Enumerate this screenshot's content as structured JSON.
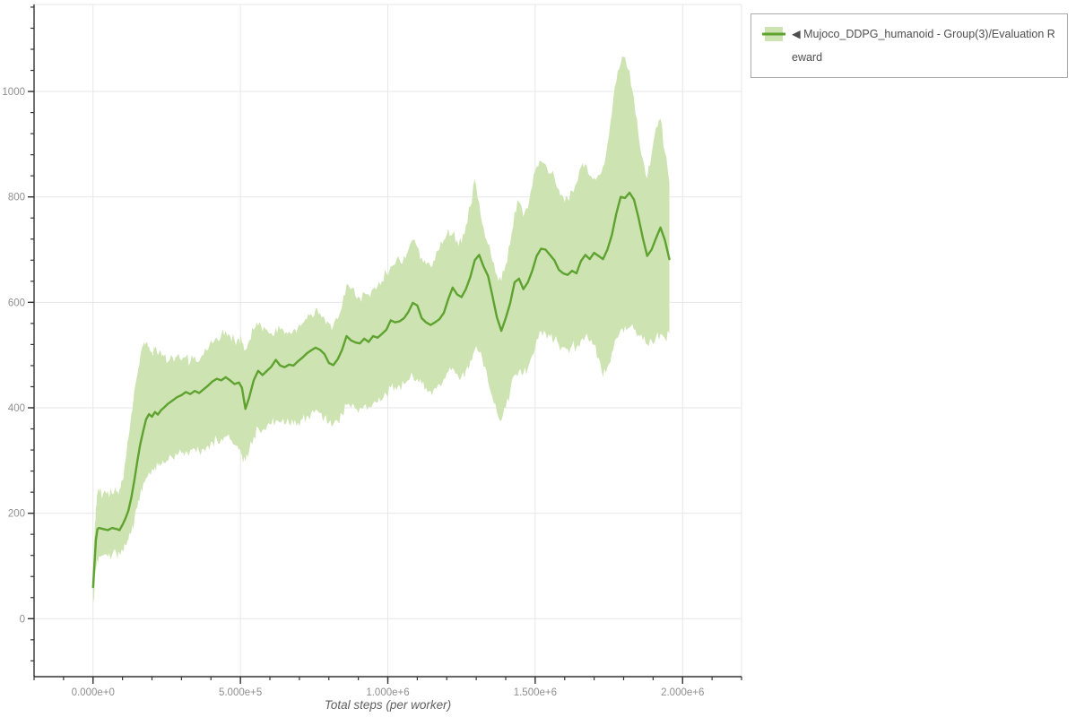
{
  "legend": {
    "arrow": "◀",
    "series_label": "Mujoco_DDPG_humanoid - Group(3)/Evaluation Reward"
  },
  "colors": {
    "line": "#5ea22f",
    "band": "#cde3b1",
    "grid": "#e7e7e7",
    "axis": "#333333",
    "tick_label": "#8f8f8f",
    "axis_title": "#5f5f5f",
    "legend_border": "#ababab",
    "legend_text": "#4d4d4d"
  },
  "chart_data": {
    "type": "line",
    "title": "",
    "xlabel": "Total steps (per worker)",
    "ylabel": "",
    "grid": true,
    "legend_position": "top-right-outside",
    "xlim": [
      -200000,
      2200000
    ],
    "ylim": [
      -110,
      1165
    ],
    "x_minor_step": 100000,
    "y_minor_step": 40,
    "xticks": [
      {
        "value": 0,
        "label": "0.000e+0"
      },
      {
        "value": 500000,
        "label": "5.000e+5"
      },
      {
        "value": 1000000,
        "label": "1.000e+6"
      },
      {
        "value": 1500000,
        "label": "1.500e+6"
      },
      {
        "value": 2000000,
        "label": "2.000e+6"
      }
    ],
    "yticks": [
      {
        "value": 0,
        "label": "0"
      },
      {
        "value": 200,
        "label": "200"
      },
      {
        "value": 400,
        "label": "400"
      },
      {
        "value": 600,
        "label": "600"
      },
      {
        "value": 800,
        "label": "800"
      },
      {
        "value": 1000,
        "label": "1000"
      }
    ],
    "series": [
      {
        "name": "Mujoco_DDPG_humanoid - Group(3)/Evaluation Reward",
        "points_format": [
          "steps",
          "mean",
          "band_lower",
          "band_upper"
        ],
        "points": [
          [
            0,
            60,
            35,
            95
          ],
          [
            5000,
            105,
            55,
            160
          ],
          [
            10000,
            150,
            95,
            215
          ],
          [
            15000,
            170,
            112,
            235
          ],
          [
            20000,
            172,
            118,
            240
          ],
          [
            35000,
            170,
            120,
            238
          ],
          [
            50000,
            168,
            118,
            242
          ],
          [
            65000,
            172,
            121,
            236
          ],
          [
            80000,
            170,
            122,
            240
          ],
          [
            90000,
            168,
            124,
            245
          ],
          [
            100000,
            178,
            130,
            262
          ],
          [
            110000,
            190,
            140,
            300
          ],
          [
            120000,
            205,
            150,
            342
          ],
          [
            130000,
            230,
            165,
            388
          ],
          [
            140000,
            262,
            186,
            432
          ],
          [
            150000,
            298,
            210,
            462
          ],
          [
            160000,
            330,
            235,
            495
          ],
          [
            170000,
            355,
            255,
            518
          ],
          [
            180000,
            378,
            268,
            523
          ],
          [
            190000,
            388,
            278,
            515
          ],
          [
            200000,
            383,
            284,
            506
          ],
          [
            210000,
            392,
            288,
            512
          ],
          [
            220000,
            387,
            290,
            500
          ],
          [
            230000,
            395,
            292,
            506
          ],
          [
            240000,
            400,
            296,
            498
          ],
          [
            255000,
            408,
            300,
            488
          ],
          [
            270000,
            414,
            305,
            496
          ],
          [
            285000,
            420,
            310,
            498
          ],
          [
            300000,
            424,
            314,
            490
          ],
          [
            315000,
            430,
            318,
            496
          ],
          [
            330000,
            426,
            320,
            486
          ],
          [
            345000,
            432,
            322,
            498
          ],
          [
            360000,
            428,
            318,
            488
          ],
          [
            375000,
            435,
            322,
            500
          ],
          [
            390000,
            442,
            328,
            510
          ],
          [
            405000,
            450,
            335,
            522
          ],
          [
            420000,
            455,
            340,
            532
          ],
          [
            435000,
            452,
            342,
            538
          ],
          [
            450000,
            458,
            345,
            546
          ],
          [
            465000,
            452,
            340,
            536
          ],
          [
            480000,
            445,
            330,
            528
          ],
          [
            495000,
            448,
            320,
            532
          ],
          [
            505000,
            438,
            310,
            524
          ],
          [
            517000,
            398,
            298,
            510
          ],
          [
            530000,
            420,
            320,
            528
          ],
          [
            545000,
            452,
            345,
            548
          ],
          [
            560000,
            470,
            362,
            556
          ],
          [
            575000,
            462,
            358,
            545
          ],
          [
            590000,
            470,
            365,
            548
          ],
          [
            605000,
            478,
            368,
            542
          ],
          [
            620000,
            491,
            375,
            552
          ],
          [
            635000,
            480,
            372,
            548
          ],
          [
            650000,
            477,
            368,
            540
          ],
          [
            665000,
            482,
            370,
            545
          ],
          [
            680000,
            480,
            368,
            548
          ],
          [
            695000,
            488,
            372,
            552
          ],
          [
            710000,
            495,
            378,
            560
          ],
          [
            725000,
            503,
            385,
            568
          ],
          [
            740000,
            509,
            390,
            578
          ],
          [
            755000,
            514,
            396,
            588
          ],
          [
            770000,
            510,
            390,
            580
          ],
          [
            785000,
            502,
            382,
            570
          ],
          [
            800000,
            485,
            372,
            560
          ],
          [
            815000,
            481,
            368,
            555
          ],
          [
            830000,
            492,
            375,
            568
          ],
          [
            845000,
            510,
            388,
            592
          ],
          [
            860000,
            536,
            405,
            634
          ],
          [
            875000,
            528,
            400,
            625
          ],
          [
            890000,
            524,
            398,
            612
          ],
          [
            905000,
            522,
            400,
            608
          ],
          [
            920000,
            531,
            405,
            618
          ],
          [
            935000,
            525,
            402,
            615
          ],
          [
            950000,
            536,
            408,
            626
          ],
          [
            965000,
            533,
            410,
            630
          ],
          [
            980000,
            540,
            415,
            640
          ],
          [
            995000,
            548,
            425,
            656
          ],
          [
            1010000,
            566,
            438,
            668
          ],
          [
            1025000,
            562,
            440,
            672
          ],
          [
            1040000,
            564,
            442,
            680
          ],
          [
            1055000,
            570,
            445,
            688
          ],
          [
            1070000,
            582,
            452,
            700
          ],
          [
            1085000,
            599,
            460,
            718
          ],
          [
            1100000,
            594,
            455,
            705
          ],
          [
            1115000,
            570,
            445,
            685
          ],
          [
            1130000,
            562,
            438,
            672
          ],
          [
            1145000,
            557,
            432,
            668
          ],
          [
            1160000,
            562,
            438,
            680
          ],
          [
            1175000,
            568,
            445,
            700
          ],
          [
            1190000,
            580,
            455,
            718
          ],
          [
            1205000,
            606,
            468,
            740
          ],
          [
            1220000,
            628,
            476,
            730
          ],
          [
            1235000,
            615,
            465,
            718
          ],
          [
            1250000,
            610,
            460,
            712
          ],
          [
            1265000,
            625,
            472,
            746
          ],
          [
            1280000,
            648,
            490,
            782
          ],
          [
            1295000,
            680,
            510,
            834
          ],
          [
            1310000,
            690,
            505,
            790
          ],
          [
            1325000,
            668,
            478,
            742
          ],
          [
            1340000,
            650,
            450,
            710
          ],
          [
            1355000,
            612,
            420,
            678
          ],
          [
            1370000,
            572,
            392,
            652
          ],
          [
            1385000,
            546,
            376,
            640
          ],
          [
            1400000,
            570,
            400,
            672
          ],
          [
            1415000,
            598,
            430,
            710
          ],
          [
            1430000,
            638,
            462,
            772
          ],
          [
            1445000,
            645,
            470,
            790
          ],
          [
            1460000,
            625,
            465,
            762
          ],
          [
            1475000,
            638,
            475,
            778
          ],
          [
            1490000,
            660,
            500,
            820
          ],
          [
            1505000,
            688,
            530,
            858
          ],
          [
            1520000,
            702,
            545,
            868
          ],
          [
            1535000,
            700,
            542,
            862
          ],
          [
            1550000,
            690,
            535,
            845
          ],
          [
            1565000,
            680,
            528,
            838
          ],
          [
            1580000,
            662,
            520,
            815
          ],
          [
            1595000,
            655,
            515,
            800
          ],
          [
            1610000,
            652,
            512,
            798
          ],
          [
            1625000,
            660,
            518,
            812
          ],
          [
            1640000,
            655,
            515,
            826
          ],
          [
            1655000,
            678,
            528,
            856
          ],
          [
            1670000,
            690,
            535,
            862
          ],
          [
            1685000,
            682,
            525,
            840
          ],
          [
            1700000,
            694,
            520,
            836
          ],
          [
            1715000,
            688,
            495,
            842
          ],
          [
            1730000,
            682,
            458,
            858
          ],
          [
            1745000,
            700,
            478,
            900
          ],
          [
            1760000,
            728,
            505,
            958
          ],
          [
            1775000,
            768,
            532,
            1018
          ],
          [
            1790000,
            800,
            548,
            1052
          ],
          [
            1805000,
            798,
            555,
            1065
          ],
          [
            1820000,
            808,
            552,
            1040
          ],
          [
            1835000,
            795,
            548,
            988
          ],
          [
            1850000,
            762,
            538,
            920
          ],
          [
            1865000,
            722,
            528,
            872
          ],
          [
            1880000,
            688,
            520,
            835
          ],
          [
            1895000,
            700,
            528,
            880
          ],
          [
            1910000,
            722,
            535,
            932
          ],
          [
            1925000,
            742,
            540,
            948
          ],
          [
            1940000,
            718,
            532,
            885
          ],
          [
            1955000,
            682,
            540,
            828
          ]
        ]
      }
    ]
  }
}
